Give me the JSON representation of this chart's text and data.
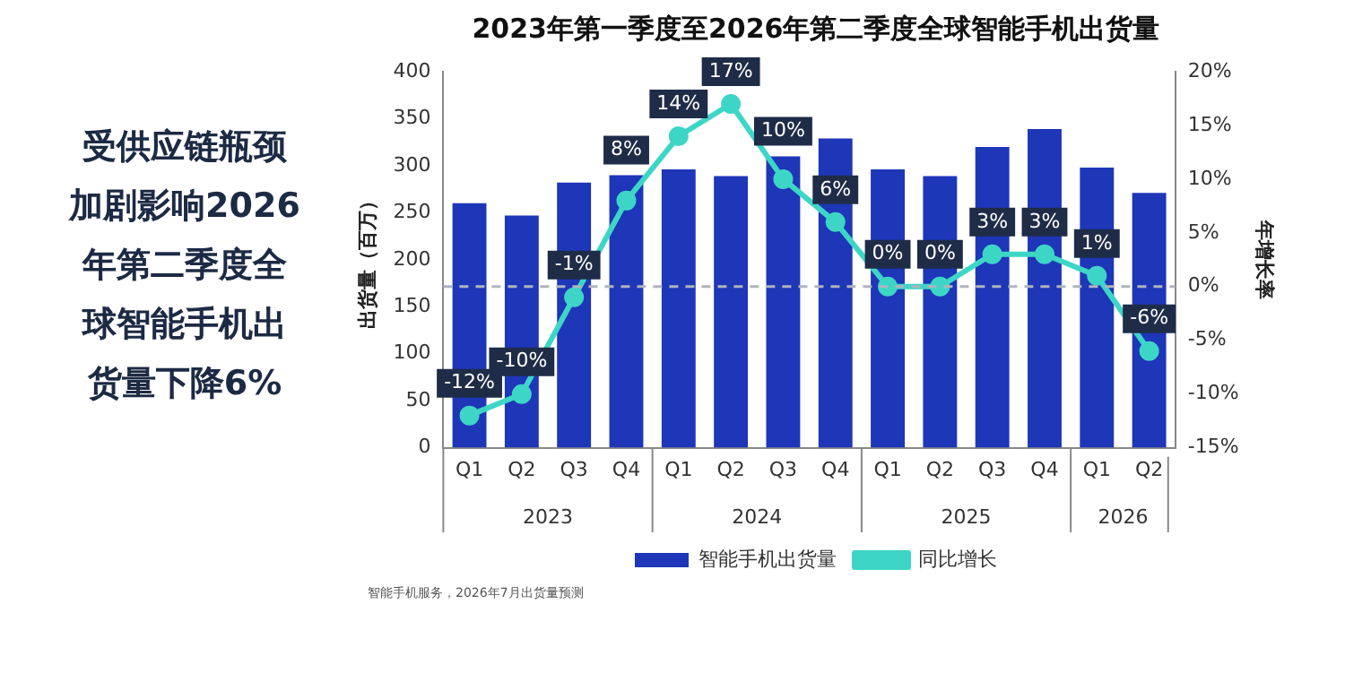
{
  "chart_data": {
    "type": "bar",
    "title": "2023年第一季度至2026年第二季度全球智能手机出货量",
    "ylabel": "出货量（百万）",
    "y2label": "年增长率",
    "categories": [
      "Q1",
      "Q2",
      "Q3",
      "Q4",
      "Q1",
      "Q2",
      "Q3",
      "Q4",
      "Q1",
      "Q2",
      "Q3",
      "Q4",
      "Q1",
      "Q2"
    ],
    "series": [
      {
        "name": "智能手机出货量",
        "color": "#1e36b8",
        "values": [
          260,
          247,
          282,
          290,
          296,
          289,
          310,
          329,
          296,
          289,
          320,
          339,
          298,
          271
        ]
      },
      {
        "name": "同比增长",
        "type": "line",
        "axis": "y2",
        "color": "#3dd6c6",
        "marker": "circle",
        "values": [
          -12,
          -10,
          -1,
          8,
          14,
          17,
          10,
          6,
          0,
          0,
          3,
          3,
          1,
          -6
        ],
        "value_labels": [
          "-12%",
          "-10%",
          "-1%",
          "8%",
          "14%",
          "17%",
          "10%",
          "6%",
          "0%",
          "0%",
          "3%",
          "3%",
          "1%",
          "-6%"
        ]
      }
    ],
    "ylim": [
      0,
      400
    ],
    "yticks": [
      0,
      50,
      100,
      150,
      200,
      250,
      300,
      350,
      400
    ],
    "y2lim": [
      -15,
      20
    ],
    "y2ticks": [
      {
        "value": -15,
        "label": "-15%"
      },
      {
        "value": -10,
        "label": "-10%"
      },
      {
        "value": -5,
        "label": "-5%"
      },
      {
        "value": 0,
        "label": "0%"
      },
      {
        "value": 5,
        "label": "5%"
      },
      {
        "value": 10,
        "label": "10%"
      },
      {
        "value": 15,
        "label": "15%"
      },
      {
        "value": 20,
        "label": "20%"
      }
    ],
    "ref_lines": [
      {
        "axis": "y2",
        "value": 0,
        "color": "#b0b4bc",
        "line_style": "dashed"
      }
    ],
    "grid": false,
    "legend": "bottom",
    "annotations": [
      "2023",
      "2024",
      "2025",
      "2026",
      "受供应链瓶颈加剧影响2026年第二季度全球智能手机出货量下降6%",
      "智能手机服务，2026年7月出货量预测"
    ]
  }
}
